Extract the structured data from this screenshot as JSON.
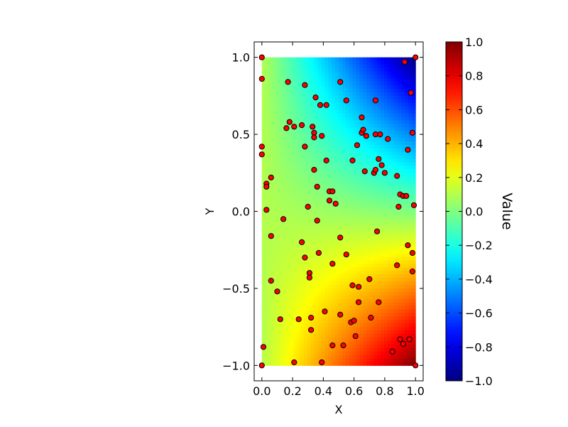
{
  "chart_data": {
    "type": "heatmap",
    "subtype": "interpolated-surface-with-scatter",
    "title": "",
    "xlabel": "X",
    "ylabel": "Y",
    "xlim": [
      -0.05,
      1.05
    ],
    "ylim": [
      -1.1,
      1.1
    ],
    "x_ticks": [
      0.0,
      0.2,
      0.4,
      0.6,
      0.8,
      1.0
    ],
    "x_tick_labels": [
      "0.0",
      "0.2",
      "0.4",
      "0.6",
      "0.8",
      "1.0"
    ],
    "y_ticks": [
      -1.0,
      -0.5,
      0.0,
      0.5,
      1.0
    ],
    "y_tick_labels": [
      "−1.0",
      "−0.5",
      "0.0",
      "0.5",
      "1.0"
    ],
    "grid": false,
    "colormap": "jet",
    "colorbar": {
      "label": "Value",
      "vmin": -1.0,
      "vmax": 1.0,
      "ticks": [
        -1.0,
        -0.8,
        -0.6,
        -0.4,
        -0.2,
        0.0,
        0.2,
        0.4,
        0.6,
        0.8,
        1.0
      ],
      "tick_labels": [
        "−1.0",
        "−0.8",
        "−0.6",
        "−0.4",
        "−0.2",
        "0.0",
        "0.2",
        "0.4",
        "0.6",
        "0.8",
        "1.0"
      ],
      "placement": "right"
    },
    "surface": {
      "x_range": [
        0.0,
        1.0
      ],
      "y_range": [
        -1.0,
        1.0
      ],
      "corner_values": {
        "x0_ytop": 0.1,
        "x1_ytop": -1.0,
        "x0_ybottom": 0.1,
        "x1_ybottom": 1.0
      }
    },
    "points_style": {
      "fill": "#ff0000",
      "stroke": "#000000"
    },
    "points": [
      [
        0.0,
        1.0
      ],
      [
        0.0,
        0.86
      ],
      [
        0.0,
        0.42
      ],
      [
        0.0,
        0.37
      ],
      [
        0.0,
        -1.0
      ],
      [
        0.01,
        -0.88
      ],
      [
        0.03,
        0.18
      ],
      [
        0.03,
        0.16
      ],
      [
        0.03,
        0.01
      ],
      [
        0.06,
        0.22
      ],
      [
        0.06,
        -0.16
      ],
      [
        0.06,
        -0.45
      ],
      [
        0.1,
        -0.52
      ],
      [
        0.12,
        -0.7
      ],
      [
        0.14,
        -0.05
      ],
      [
        0.16,
        0.54
      ],
      [
        0.17,
        0.84
      ],
      [
        0.18,
        0.58
      ],
      [
        0.21,
        0.55
      ],
      [
        0.21,
        -0.98
      ],
      [
        0.24,
        -0.7
      ],
      [
        0.26,
        0.56
      ],
      [
        0.26,
        -0.2
      ],
      [
        0.28,
        0.82
      ],
      [
        0.28,
        0.42
      ],
      [
        0.28,
        -0.3
      ],
      [
        0.3,
        0.03
      ],
      [
        0.31,
        -0.4
      ],
      [
        0.31,
        -0.43
      ],
      [
        0.32,
        -0.77
      ],
      [
        0.32,
        -0.69
      ],
      [
        0.33,
        0.55
      ],
      [
        0.34,
        0.51
      ],
      [
        0.34,
        0.48
      ],
      [
        0.34,
        0.27
      ],
      [
        0.35,
        0.74
      ],
      [
        0.36,
        0.16
      ],
      [
        0.36,
        -0.06
      ],
      [
        0.37,
        -0.27
      ],
      [
        0.38,
        0.69
      ],
      [
        0.39,
        0.49
      ],
      [
        0.39,
        -0.98
      ],
      [
        0.41,
        -0.65
      ],
      [
        0.42,
        0.69
      ],
      [
        0.42,
        0.33
      ],
      [
        0.44,
        0.13
      ],
      [
        0.44,
        0.07
      ],
      [
        0.46,
        0.13
      ],
      [
        0.46,
        -0.34
      ],
      [
        0.46,
        -0.87
      ],
      [
        0.48,
        0.05
      ],
      [
        0.51,
        0.84
      ],
      [
        0.51,
        -0.17
      ],
      [
        0.51,
        -0.67
      ],
      [
        0.53,
        -0.87
      ],
      [
        0.55,
        0.72
      ],
      [
        0.55,
        -0.28
      ],
      [
        0.58,
        -0.72
      ],
      [
        0.59,
        -0.48
      ],
      [
        0.59,
        0.33
      ],
      [
        0.6,
        -0.71
      ],
      [
        0.61,
        -0.81
      ],
      [
        0.62,
        0.43
      ],
      [
        0.63,
        -0.49
      ],
      [
        0.63,
        -0.59
      ],
      [
        0.65,
        0.61
      ],
      [
        0.65,
        0.51
      ],
      [
        0.66,
        0.53
      ],
      [
        0.67,
        0.26
      ],
      [
        0.68,
        0.49
      ],
      [
        0.7,
        -0.44
      ],
      [
        0.71,
        -0.69
      ],
      [
        0.73,
        0.25
      ],
      [
        0.74,
        0.27
      ],
      [
        0.74,
        0.5
      ],
      [
        0.74,
        0.72
      ],
      [
        0.75,
        -0.13
      ],
      [
        0.76,
        0.34
      ],
      [
        0.76,
        -0.59
      ],
      [
        0.77,
        0.5
      ],
      [
        0.78,
        0.3
      ],
      [
        0.8,
        0.25
      ],
      [
        0.82,
        0.47
      ],
      [
        0.85,
        -0.91
      ],
      [
        0.88,
        0.23
      ],
      [
        0.88,
        -0.35
      ],
      [
        0.89,
        0.03
      ],
      [
        0.9,
        0.11
      ],
      [
        0.9,
        -0.83
      ],
      [
        0.92,
        -0.86
      ],
      [
        0.92,
        0.1
      ],
      [
        0.93,
        0.97
      ],
      [
        0.94,
        0.1
      ],
      [
        0.95,
        -0.22
      ],
      [
        0.95,
        0.4
      ],
      [
        0.96,
        -0.83
      ],
      [
        0.97,
        0.77
      ],
      [
        0.98,
        0.51
      ],
      [
        0.98,
        -0.27
      ],
      [
        0.98,
        -0.39
      ],
      [
        0.99,
        0.04
      ],
      [
        1.0,
        1.0
      ],
      [
        1.0,
        -1.0
      ]
    ]
  }
}
